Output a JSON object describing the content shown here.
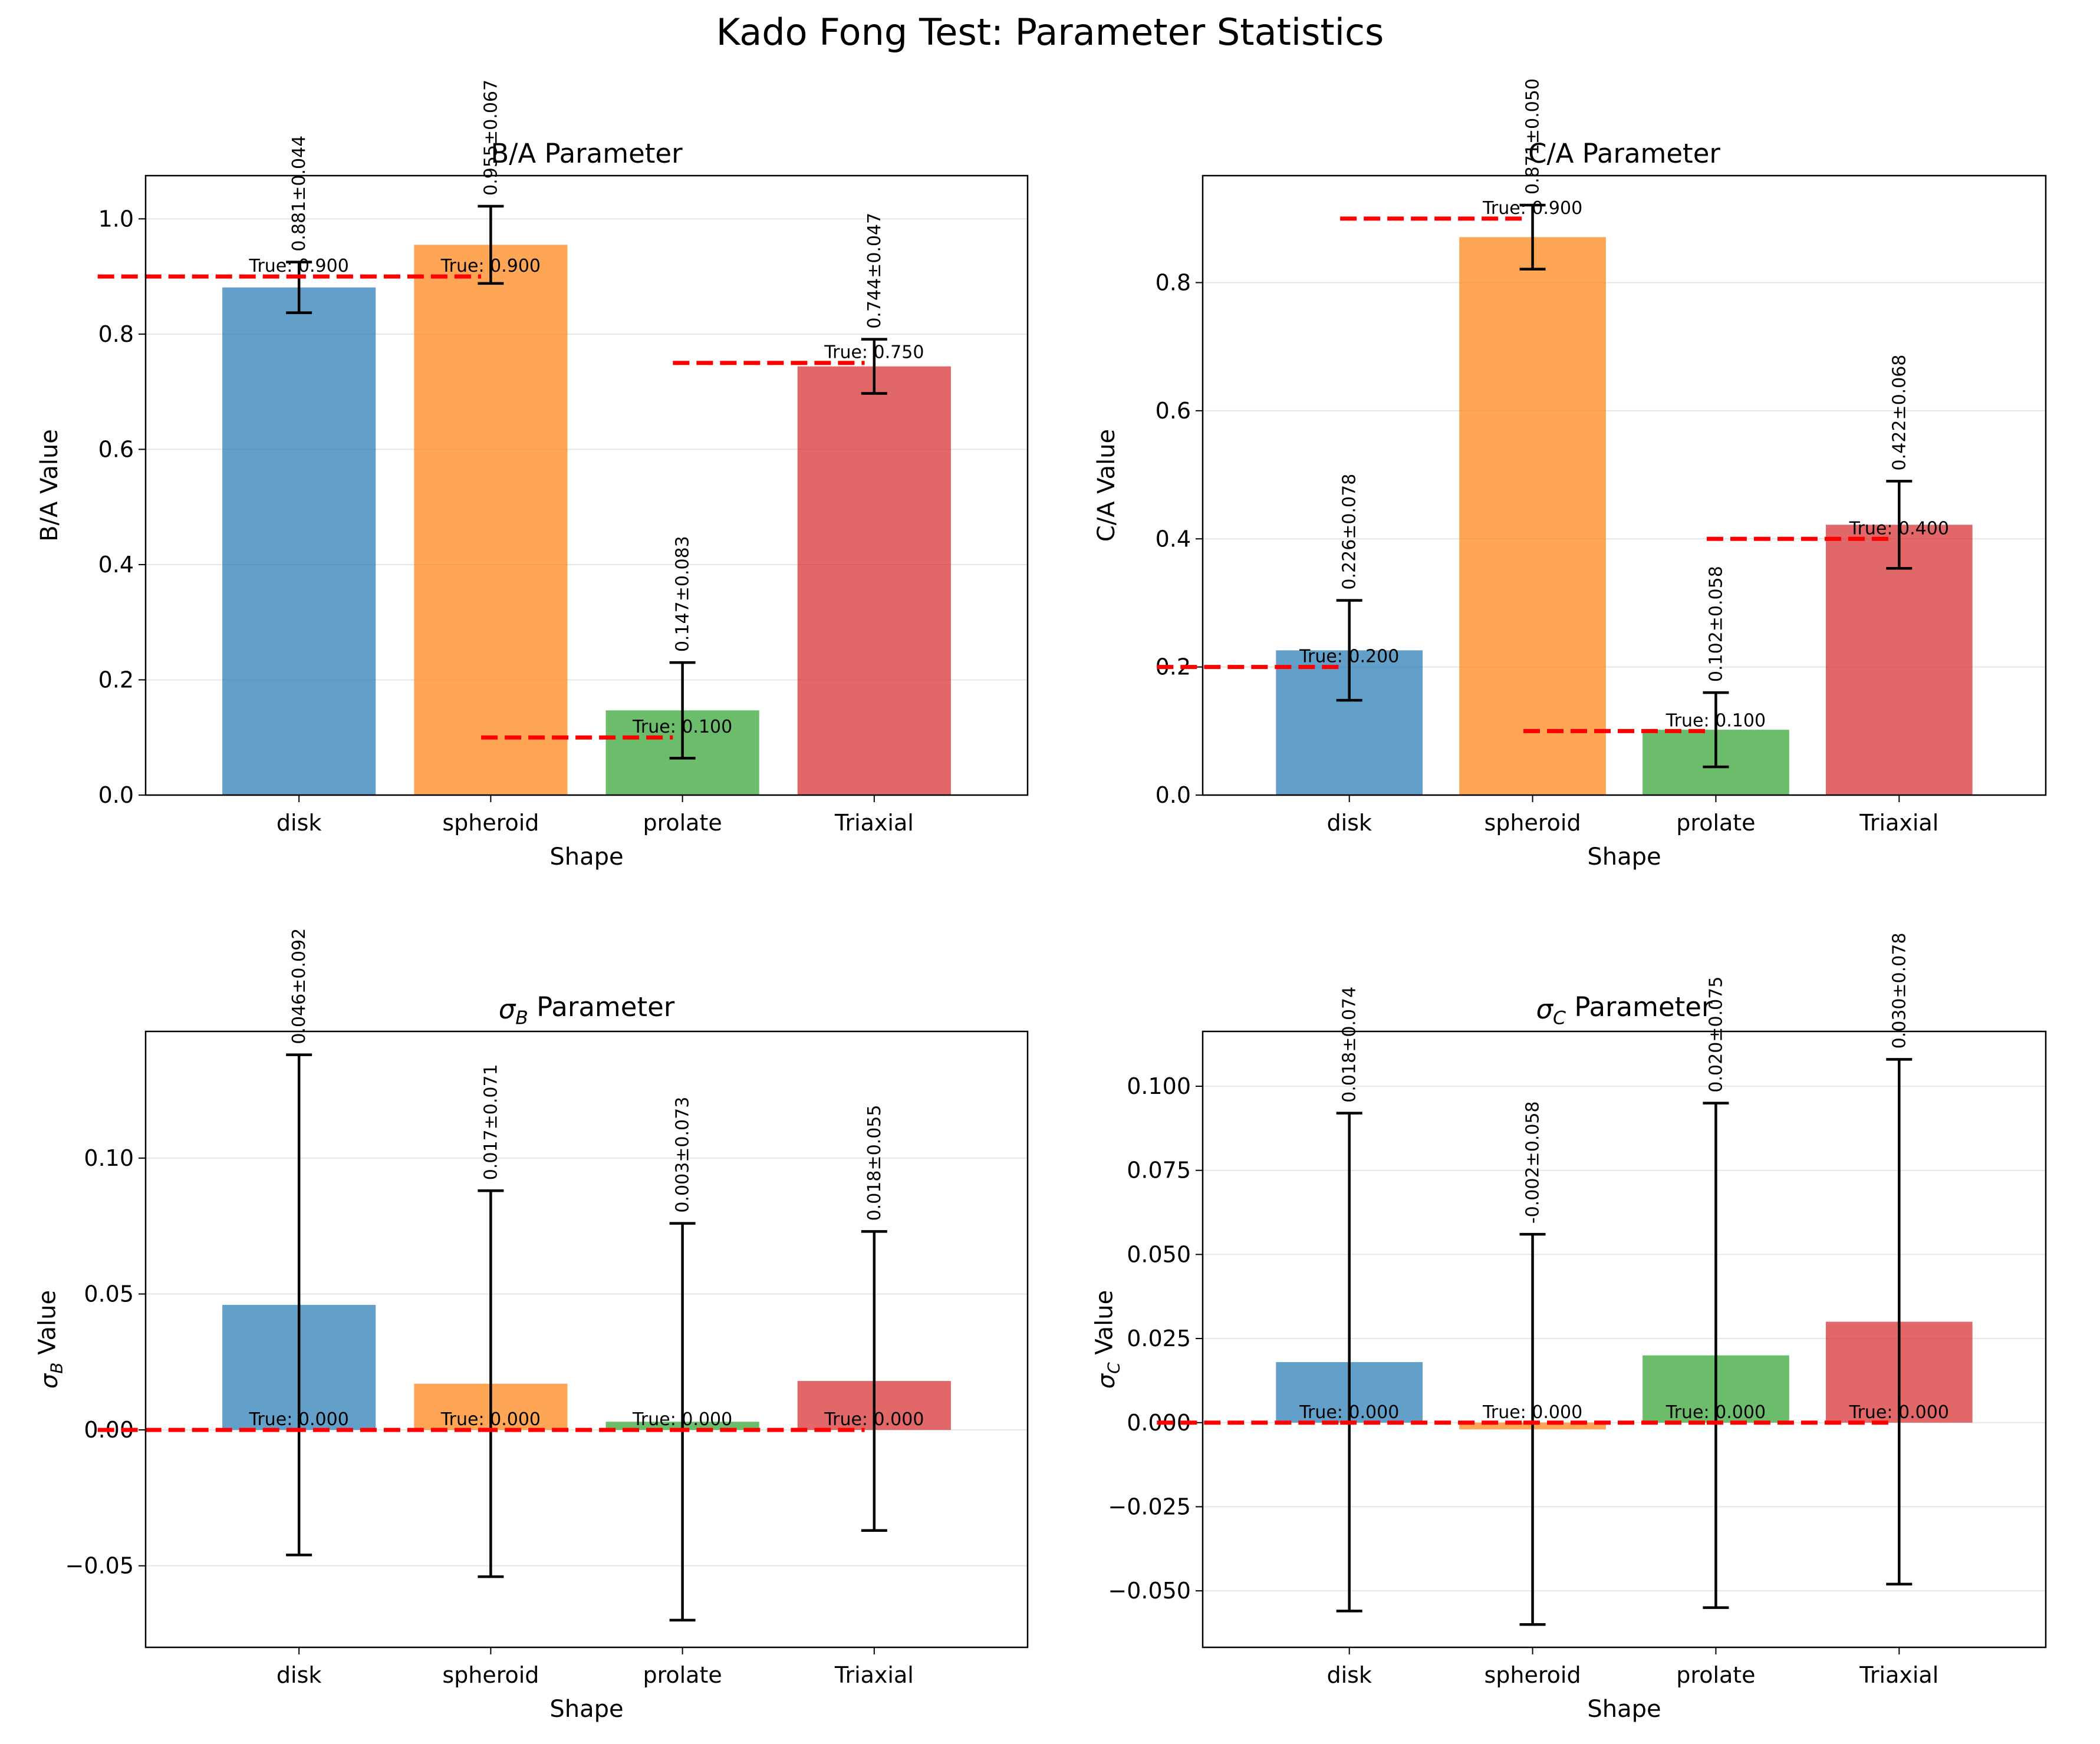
{
  "figure_title": "Kado Fong Test: Parameter Statistics",
  "colors": {
    "bars": [
      "#1f77b4",
      "#ff7f0e",
      "#2ca02c",
      "#d62728"
    ],
    "bar_alpha": 0.7,
    "true_line": "#ff0000",
    "error_bar": "#000000",
    "grid": "#e6e6e6"
  },
  "chart_data": [
    {
      "type": "bar",
      "title": "B/A Parameter",
      "title_parts": [],
      "xlabel": "Shape",
      "ylabel": "B/A Value",
      "ylabel_parts": [],
      "categories": [
        "disk",
        "spheroid",
        "prolate",
        "Triaxial"
      ],
      "values": [
        0.881,
        0.955,
        0.147,
        0.744
      ],
      "errors": [
        0.044,
        0.067,
        0.083,
        0.047
      ],
      "value_labels": [
        "0.881±0.044",
        "0.955±0.067",
        "0.147±0.083",
        "0.744±0.047"
      ],
      "true_values": [
        0.9,
        0.9,
        0.1,
        0.75
      ],
      "true_labels": [
        "True: 0.900",
        "True: 0.900",
        "True: 0.100",
        "True: 0.750"
      ],
      "ylim": [
        0.0,
        1.075
      ],
      "yticks": [
        0.0,
        0.2,
        0.4,
        0.6,
        0.8,
        1.0
      ],
      "ytick_labels": [
        "0.0",
        "0.2",
        "0.4",
        "0.6",
        "0.8",
        "1.0"
      ],
      "grid": "y-axis"
    },
    {
      "type": "bar",
      "title": "C/A Parameter",
      "title_parts": [],
      "xlabel": "Shape",
      "ylabel": "C/A Value",
      "ylabel_parts": [],
      "categories": [
        "disk",
        "spheroid",
        "prolate",
        "Triaxial"
      ],
      "values": [
        0.226,
        0.871,
        0.102,
        0.422
      ],
      "errors": [
        0.078,
        0.05,
        0.058,
        0.068
      ],
      "value_labels": [
        "0.226±0.078",
        "0.871±0.050",
        "0.102±0.058",
        "0.422±0.068"
      ],
      "true_values": [
        0.2,
        0.9,
        0.1,
        0.4
      ],
      "true_labels": [
        "True: 0.200",
        "True: 0.900",
        "True: 0.100",
        "True: 0.400"
      ],
      "ylim": [
        0.0,
        0.967
      ],
      "yticks": [
        0.0,
        0.2,
        0.4,
        0.6,
        0.8
      ],
      "ytick_labels": [
        "0.0",
        "0.2",
        "0.4",
        "0.6",
        "0.8"
      ],
      "grid": "y-axis"
    },
    {
      "type": "bar",
      "title": "",
      "title_parts": [
        {
          "text": "σ",
          "style": "italic"
        },
        {
          "text": "B",
          "style": "sub"
        },
        {
          "text": " Parameter",
          "style": "normal"
        }
      ],
      "xlabel": "Shape",
      "ylabel": "",
      "ylabel_parts": [
        {
          "text": "σ",
          "style": "italic"
        },
        {
          "text": "B",
          "style": "sub"
        },
        {
          "text": " Value",
          "style": "normal"
        }
      ],
      "categories": [
        "disk",
        "spheroid",
        "prolate",
        "Triaxial"
      ],
      "values": [
        0.046,
        0.017,
        0.003,
        0.018
      ],
      "errors": [
        0.092,
        0.071,
        0.073,
        0.055
      ],
      "value_labels": [
        "0.046±0.092",
        "0.017±0.071",
        "0.003±0.073",
        "0.018±0.055"
      ],
      "true_values": [
        0.0,
        0.0,
        0.0,
        0.0
      ],
      "true_labels": [
        "True: 0.000",
        "True: 0.000",
        "True: 0.000",
        "True: 0.000"
      ],
      "ylim": [
        -0.08,
        0.1466
      ],
      "yticks": [
        -0.05,
        0.0,
        0.05,
        0.1
      ],
      "ytick_labels": [
        "−0.05",
        "0.00",
        "0.05",
        "0.10"
      ],
      "grid": "y-axis"
    },
    {
      "type": "bar",
      "title": "",
      "title_parts": [
        {
          "text": "σ",
          "style": "italic"
        },
        {
          "text": "C",
          "style": "sub"
        },
        {
          "text": " Parameter",
          "style": "normal"
        }
      ],
      "xlabel": "Shape",
      "ylabel": "",
      "ylabel_parts": [
        {
          "text": "σ",
          "style": "italic"
        },
        {
          "text": "C",
          "style": "sub"
        },
        {
          "text": " Value",
          "style": "normal"
        }
      ],
      "categories": [
        "disk",
        "spheroid",
        "prolate",
        "Triaxial"
      ],
      "values": [
        0.018,
        -0.002,
        0.02,
        0.03
      ],
      "errors": [
        0.074,
        0.058,
        0.075,
        0.078
      ],
      "value_labels": [
        "0.018±0.074",
        "-0.002±0.058",
        "0.020±0.075",
        "0.030±0.078"
      ],
      "true_values": [
        0.0,
        0.0,
        0.0,
        0.0
      ],
      "true_labels": [
        "True: 0.000",
        "True: 0.000",
        "True: 0.000",
        "True: 0.000"
      ],
      "ylim": [
        -0.0668,
        0.1163
      ],
      "yticks": [
        -0.05,
        -0.025,
        0.0,
        0.025,
        0.05,
        0.075,
        0.1
      ],
      "ytick_labels": [
        "−0.050",
        "−0.025",
        "0.000",
        "0.025",
        "0.050",
        "0.075",
        "0.100"
      ],
      "grid": "y-axis"
    }
  ]
}
